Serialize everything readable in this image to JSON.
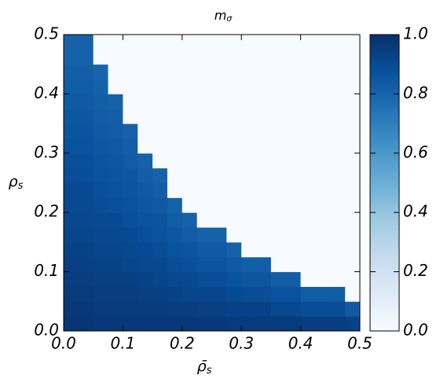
{
  "chart_data": {
    "type": "heatmap",
    "title": "m",
    "title_subscript": "σ",
    "x_label": "ρ̄",
    "x_label_subscript": "s",
    "y_label": "ρ",
    "y_label_subscript": "s",
    "colormap": "Blues",
    "xlim": [
      0,
      0.5
    ],
    "ylim": [
      0,
      0.5
    ],
    "xticks": [
      {
        "value": 0,
        "label": "0.0"
      },
      {
        "value": 0.1,
        "label": "0.1"
      },
      {
        "value": 0.2,
        "label": "0.2"
      },
      {
        "value": 0.3,
        "label": "0.3"
      },
      {
        "value": 0.4,
        "label": "0.4"
      },
      {
        "value": 0.5,
        "label": "0.5"
      }
    ],
    "yticks": [
      {
        "value": 0,
        "label": "0.0"
      },
      {
        "value": 0.1,
        "label": "0.1"
      },
      {
        "value": 0.2,
        "label": "0.2"
      },
      {
        "value": 0.3,
        "label": "0.3"
      },
      {
        "value": 0.4,
        "label": "0.4"
      },
      {
        "value": 0.5,
        "label": "0.5"
      }
    ],
    "colorbar_lim": [
      0,
      1
    ],
    "colorbar_ticks": [
      {
        "value": 0,
        "label": "0.0"
      },
      {
        "value": 0.2,
        "label": "0.2"
      },
      {
        "value": 0.4,
        "label": "0.4"
      },
      {
        "value": 0.6,
        "label": "0.6"
      },
      {
        "value": 0.8,
        "label": "0.8"
      },
      {
        "value": 1,
        "label": "1.0"
      }
    ],
    "z": [
      [
        0.98,
        0.98,
        0.97,
        0.97,
        0.97,
        0.97,
        0.97,
        0.97,
        0.97,
        0.97,
        0.97,
        0.96,
        0.96,
        0.96,
        0.96,
        0.96,
        0.95,
        0.95,
        0.95,
        0.93
      ],
      [
        0.97,
        0.97,
        0.96,
        0.96,
        0.96,
        0.96,
        0.96,
        0.95,
        0.95,
        0.94,
        0.94,
        0.93,
        0.93,
        0.93,
        0.91,
        0.91,
        0.89,
        0.89,
        0.89,
        0.84
      ],
      [
        0.96,
        0.96,
        0.95,
        0.95,
        0.95,
        0.94,
        0.94,
        0.93,
        0.92,
        0.92,
        0.92,
        0.9,
        0.89,
        0.89,
        0.87,
        0.87,
        0.83,
        0.83,
        0.83,
        0
      ],
      [
        0.95,
        0.95,
        0.94,
        0.94,
        0.94,
        0.93,
        0.92,
        0.91,
        0.9,
        0.89,
        0.89,
        0.87,
        0.85,
        0.85,
        0.82,
        0.82,
        0,
        0,
        0,
        0
      ],
      [
        0.94,
        0.94,
        0.93,
        0.93,
        0.92,
        0.91,
        0.91,
        0.89,
        0.88,
        0.86,
        0.86,
        0.84,
        0.82,
        0.82,
        0,
        0,
        0,
        0,
        0,
        0
      ],
      [
        0.93,
        0.93,
        0.92,
        0.92,
        0.91,
        0.9,
        0.89,
        0.87,
        0.86,
        0.84,
        0.84,
        0.81,
        0,
        0,
        0,
        0,
        0,
        0,
        0,
        0
      ],
      [
        0.92,
        0.92,
        0.91,
        0.91,
        0.9,
        0.88,
        0.87,
        0.85,
        0.83,
        0.81,
        0.81,
        0,
        0,
        0,
        0,
        0,
        0,
        0,
        0,
        0
      ],
      [
        0.91,
        0.91,
        0.9,
        0.9,
        0.88,
        0.87,
        0.86,
        0.83,
        0.81,
        0,
        0,
        0,
        0,
        0,
        0,
        0,
        0,
        0,
        0,
        0
      ],
      [
        0.9,
        0.9,
        0.89,
        0.88,
        0.87,
        0.85,
        0.84,
        0.81,
        0,
        0,
        0,
        0,
        0,
        0,
        0,
        0,
        0,
        0,
        0,
        0
      ],
      [
        0.9,
        0.9,
        0.88,
        0.87,
        0.86,
        0.84,
        0.82,
        0,
        0,
        0,
        0,
        0,
        0,
        0,
        0,
        0,
        0,
        0,
        0,
        0
      ],
      [
        0.89,
        0.89,
        0.87,
        0.86,
        0.85,
        0.82,
        0.81,
        0,
        0,
        0,
        0,
        0,
        0,
        0,
        0,
        0,
        0,
        0,
        0,
        0
      ],
      [
        0.88,
        0.88,
        0.86,
        0.85,
        0.83,
        0.81,
        0,
        0,
        0,
        0,
        0,
        0,
        0,
        0,
        0,
        0,
        0,
        0,
        0,
        0
      ],
      [
        0.87,
        0.87,
        0.85,
        0.84,
        0.82,
        0,
        0,
        0,
        0,
        0,
        0,
        0,
        0,
        0,
        0,
        0,
        0,
        0,
        0,
        0
      ],
      [
        0.86,
        0.86,
        0.84,
        0.83,
        0.81,
        0,
        0,
        0,
        0,
        0,
        0,
        0,
        0,
        0,
        0,
        0,
        0,
        0,
        0,
        0
      ],
      [
        0.85,
        0.85,
        0.83,
        0.82,
        0,
        0,
        0,
        0,
        0,
        0,
        0,
        0,
        0,
        0,
        0,
        0,
        0,
        0,
        0,
        0
      ],
      [
        0.84,
        0.84,
        0.82,
        0.81,
        0,
        0,
        0,
        0,
        0,
        0,
        0,
        0,
        0,
        0,
        0,
        0,
        0,
        0,
        0,
        0
      ],
      [
        0.83,
        0.83,
        0.81,
        0,
        0,
        0,
        0,
        0,
        0,
        0,
        0,
        0,
        0,
        0,
        0,
        0,
        0,
        0,
        0,
        0
      ],
      [
        0.82,
        0.82,
        0.8,
        0,
        0,
        0,
        0,
        0,
        0,
        0,
        0,
        0,
        0,
        0,
        0,
        0,
        0,
        0,
        0,
        0
      ],
      [
        0.81,
        0.81,
        0,
        0,
        0,
        0,
        0,
        0,
        0,
        0,
        0,
        0,
        0,
        0,
        0,
        0,
        0,
        0,
        0,
        0
      ],
      [
        0.81,
        0.81,
        0,
        0,
        0,
        0,
        0,
        0,
        0,
        0,
        0,
        0,
        0,
        0,
        0,
        0,
        0,
        0,
        0,
        0
      ]
    ]
  }
}
